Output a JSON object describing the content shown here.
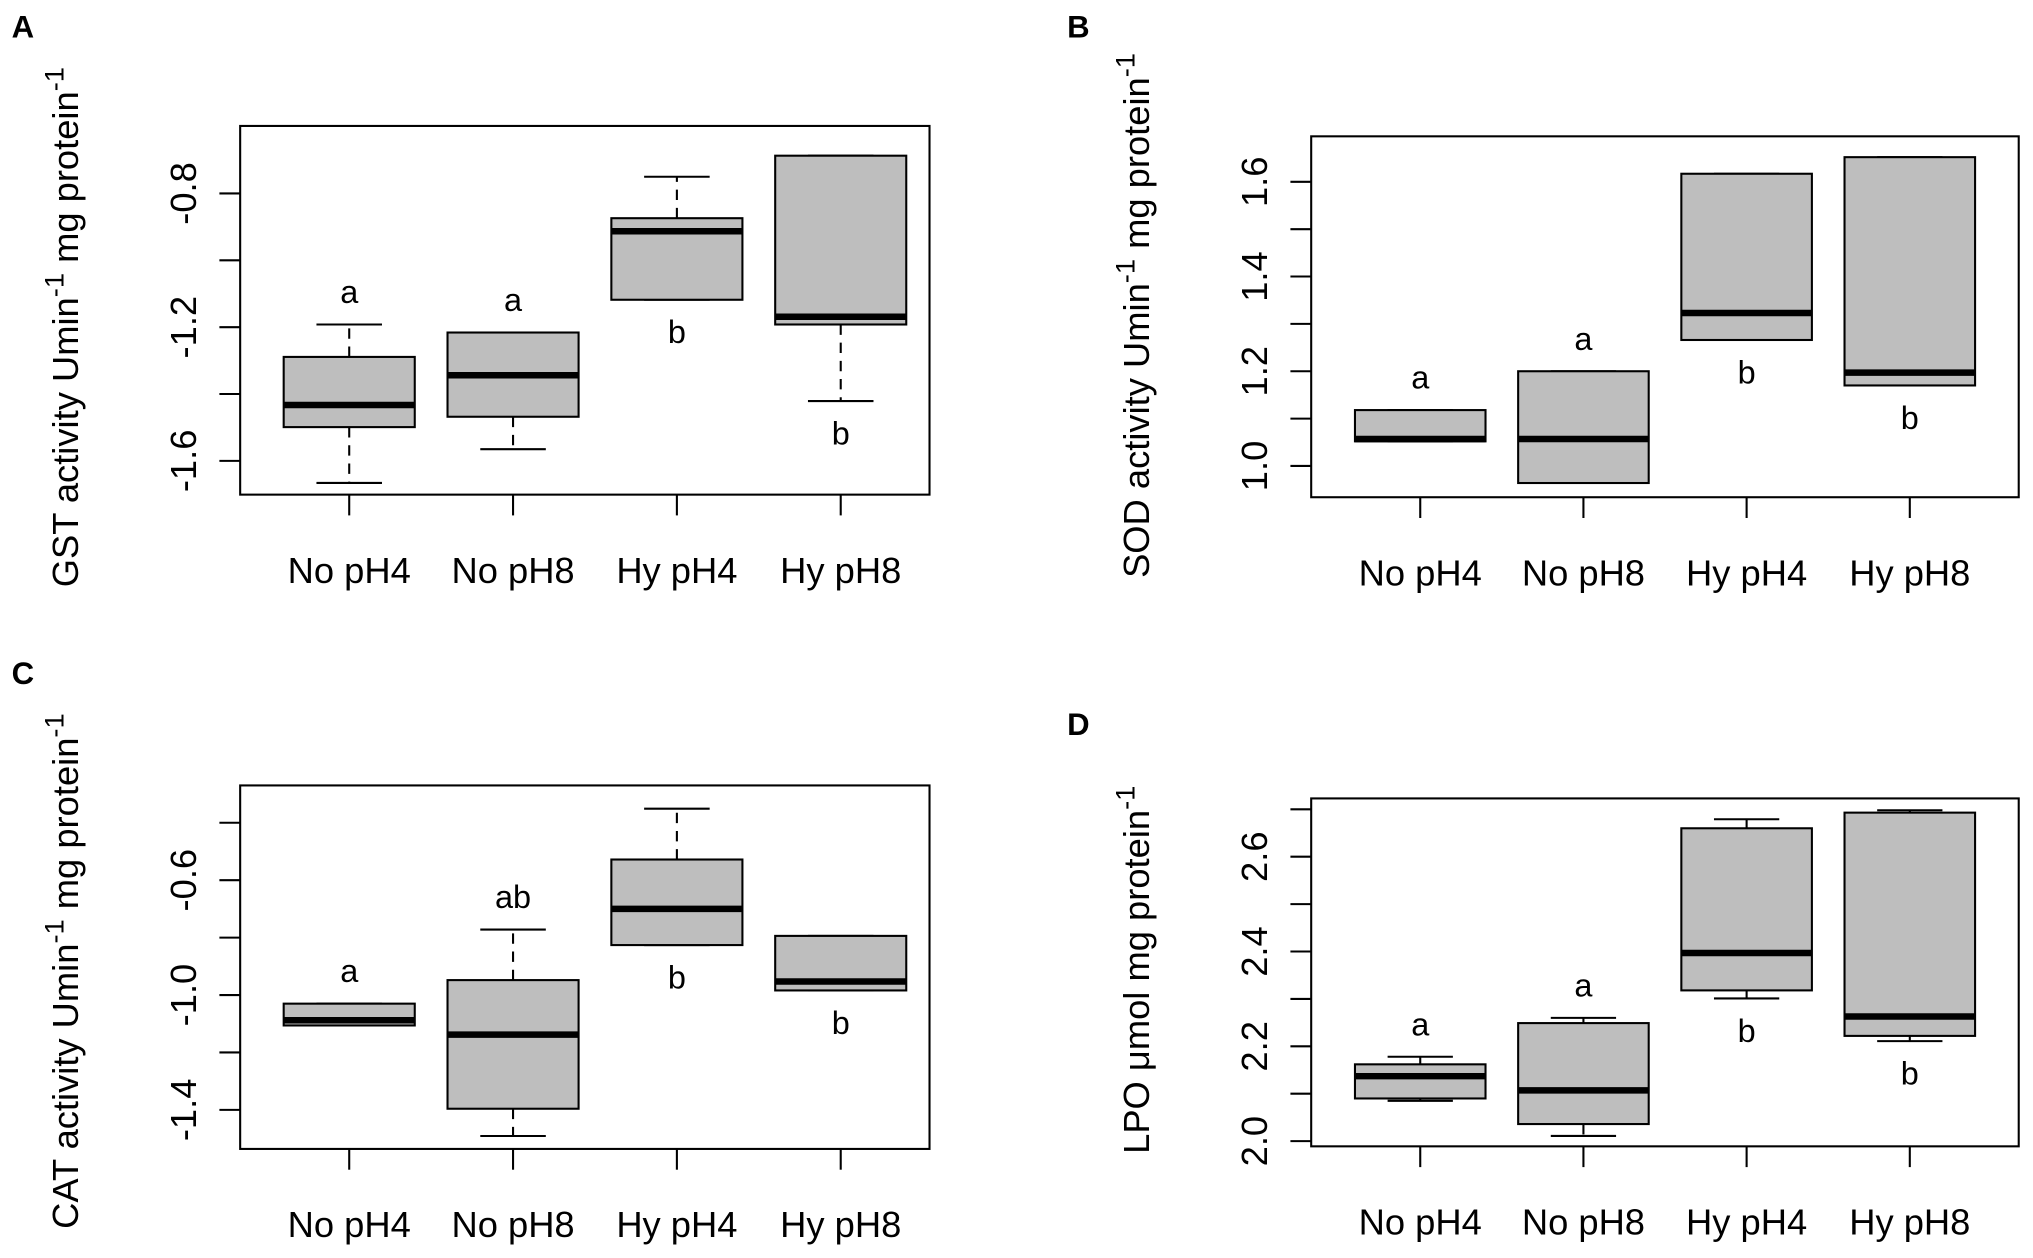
{
  "style": {
    "box_fill": "#bebebe",
    "line_color": "#000000"
  },
  "chart_data": [
    {
      "panel": "A",
      "type": "boxplot",
      "ylabel": [
        {
          "text": "GST activity Umin"
        },
        {
          "text": "-1",
          "sup": true
        },
        {
          "text": " mg protein"
        },
        {
          "text": "-1",
          "sup": true
        }
      ],
      "categories": [
        "No pH4",
        "No pH8",
        "Hy pH4",
        "Hy pH8"
      ],
      "ylim": [
        -1.701,
        -0.598
      ],
      "yticks": [
        -1.6,
        -1.4,
        -1.2,
        -1.0,
        -0.8
      ],
      "ytick_labels": [
        {
          "value": -1.6,
          "label": "-1.6"
        },
        {
          "value": -1.2,
          "label": "-1.2"
        },
        {
          "value": -0.8,
          "label": "-0.8"
        }
      ],
      "boxes": [
        {
          "whisker_low": -1.666,
          "q1": -1.499,
          "median": -1.433,
          "q3": -1.289,
          "whisker_high": -1.192,
          "letter": "a",
          "letter_above": true
        },
        {
          "whisker_low": -1.565,
          "q1": -1.468,
          "median": -1.344,
          "q3": -1.216,
          "whisker_high": -1.216,
          "letter": "a",
          "letter_above": true
        },
        {
          "whisker_low": -1.118,
          "q1": -1.118,
          "median": -0.913,
          "q3": -0.874,
          "whisker_high": -0.75,
          "letter": "b",
          "letter_above": false
        },
        {
          "whisker_low": -1.421,
          "q1": -1.192,
          "median": -1.169,
          "q3": -0.687,
          "whisker_high": -0.687,
          "letter": "b",
          "letter_above": false
        }
      ]
    },
    {
      "panel": "B",
      "type": "boxplot",
      "ylabel": [
        {
          "text": "SOD activity Umin"
        },
        {
          "text": "-1",
          "sup": true
        },
        {
          "text": " mg protein"
        },
        {
          "text": "-1",
          "sup": true
        }
      ],
      "categories": [
        "No pH4",
        "No pH8",
        "Hy pH4",
        "Hy pH8"
      ],
      "ylim": [
        0.934,
        1.696
      ],
      "yticks": [
        1.0,
        1.1,
        1.2,
        1.3,
        1.4,
        1.5,
        1.6
      ],
      "ytick_labels": [
        {
          "value": 1.0,
          "label": "1.0"
        },
        {
          "value": 1.2,
          "label": "1.2"
        },
        {
          "value": 1.4,
          "label": "1.4"
        },
        {
          "value": 1.6,
          "label": "1.6"
        }
      ],
      "boxes": [
        {
          "whisker_low": 1.052,
          "q1": 1.052,
          "median": 1.057,
          "q3": 1.118,
          "whisker_high": 1.118,
          "letter": "a",
          "letter_above": true
        },
        {
          "whisker_low": 0.964,
          "q1": 0.964,
          "median": 1.057,
          "q3": 1.2,
          "whisker_high": 1.2,
          "letter": "a",
          "letter_above": true
        },
        {
          "whisker_low": 1.266,
          "q1": 1.266,
          "median": 1.323,
          "q3": 1.617,
          "whisker_high": 1.617,
          "letter": "b",
          "letter_above": false
        },
        {
          "whisker_low": 1.17,
          "q1": 1.17,
          "median": 1.197,
          "q3": 1.652,
          "whisker_high": 1.652,
          "letter": "b",
          "letter_above": false
        }
      ]
    },
    {
      "panel": "C",
      "type": "boxplot",
      "ylabel": [
        {
          "text": "CAT activity Umin"
        },
        {
          "text": "-1",
          "sup": true
        },
        {
          "text": " mg protein"
        },
        {
          "text": "-1",
          "sup": true
        }
      ],
      "categories": [
        "No pH4",
        "No pH8",
        "Hy pH4",
        "Hy pH8"
      ],
      "ylim": [
        -1.536,
        -0.27
      ],
      "yticks": [
        -1.4,
        -1.2,
        -1.0,
        -0.8,
        -0.6,
        -0.4
      ],
      "ytick_labels": [
        {
          "value": -1.4,
          "label": "-1.4"
        },
        {
          "value": -1.0,
          "label": "-1.0"
        },
        {
          "value": -0.6,
          "label": "-0.6"
        }
      ],
      "boxes": [
        {
          "whisker_low": -1.106,
          "q1": -1.106,
          "median": -1.088,
          "q3": -1.03,
          "whisker_high": -1.03,
          "letter": "a",
          "letter_above": true
        },
        {
          "whisker_low": -1.491,
          "q1": -1.396,
          "median": -1.138,
          "q3": -0.948,
          "whisker_high": -0.772,
          "letter": "ab",
          "letter_above": true
        },
        {
          "whisker_low": -0.826,
          "q1": -0.826,
          "median": -0.7,
          "q3": -0.528,
          "whisker_high": -0.351,
          "letter": "b",
          "letter_above": false
        },
        {
          "whisker_low": -0.984,
          "q1": -0.984,
          "median": -0.953,
          "q3": -0.794,
          "whisker_high": -0.794,
          "letter": "b",
          "letter_above": false
        }
      ]
    },
    {
      "panel": "D",
      "type": "boxplot",
      "ylabel": [
        {
          "text": "LPO μmol mg protein"
        },
        {
          "text": "-1",
          "sup": true
        }
      ],
      "categories": [
        "No pH4",
        "No pH8",
        "Hy pH4",
        "Hy pH8"
      ],
      "ylim": [
        1.989,
        2.723
      ],
      "yticks": [
        2.0,
        2.1,
        2.2,
        2.3,
        2.4,
        2.5,
        2.6,
        2.7
      ],
      "ytick_labels": [
        {
          "value": 2.0,
          "label": "2.0"
        },
        {
          "value": 2.2,
          "label": "2.2"
        },
        {
          "value": 2.4,
          "label": "2.4"
        },
        {
          "value": 2.6,
          "label": "2.6"
        }
      ],
      "boxes": [
        {
          "whisker_low": 2.085,
          "q1": 2.09,
          "median": 2.137,
          "q3": 2.162,
          "whisker_high": 2.178,
          "letter": "a",
          "letter_above": true
        },
        {
          "whisker_low": 2.011,
          "q1": 2.036,
          "median": 2.107,
          "q3": 2.249,
          "whisker_high": 2.26,
          "letter": "a",
          "letter_above": true
        },
        {
          "whisker_low": 2.301,
          "q1": 2.318,
          "median": 2.397,
          "q3": 2.66,
          "whisker_high": 2.679,
          "letter": "b",
          "letter_above": false
        },
        {
          "whisker_low": 2.211,
          "q1": 2.222,
          "median": 2.263,
          "q3": 2.693,
          "whisker_high": 2.698,
          "letter": "b",
          "letter_above": false
        }
      ]
    }
  ]
}
